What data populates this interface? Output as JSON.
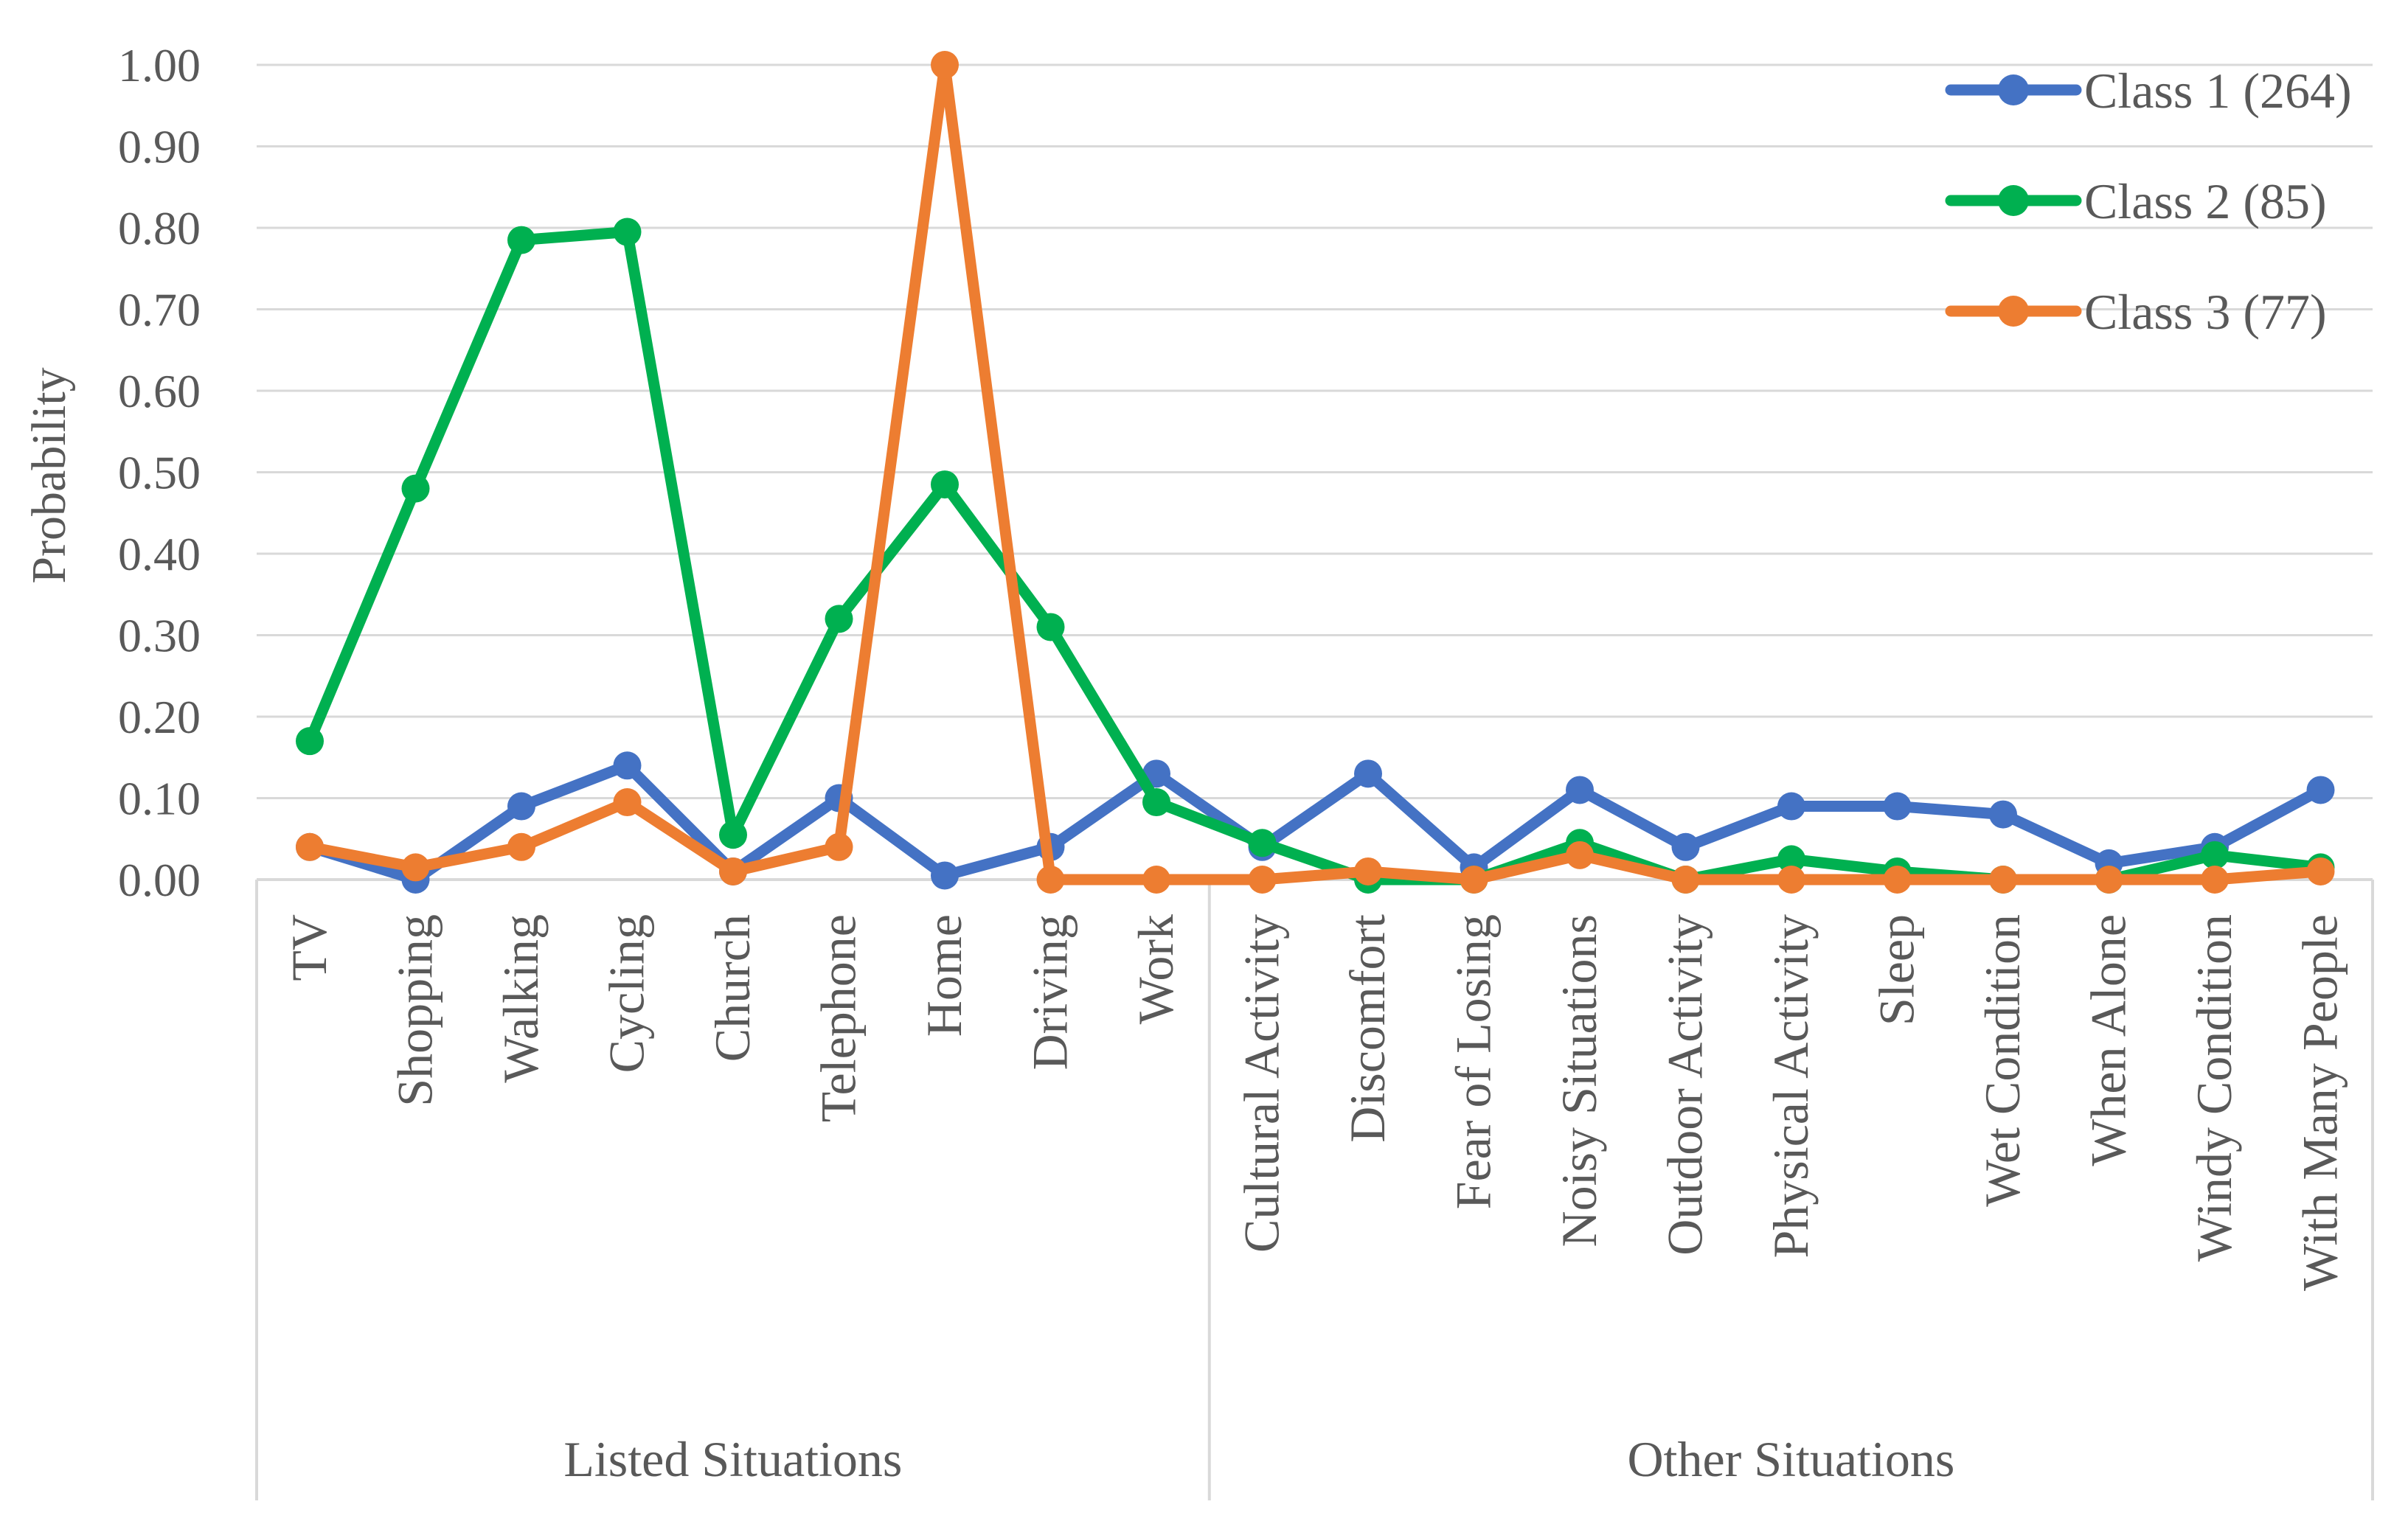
{
  "chart_data": {
    "type": "line",
    "title": "",
    "xlabel": "",
    "ylabel": "Probability",
    "ylim": [
      0,
      1
    ],
    "yticks": [
      "0.00",
      "0.10",
      "0.20",
      "0.30",
      "0.40",
      "0.50",
      "0.60",
      "0.70",
      "0.80",
      "0.90",
      "1.00"
    ],
    "grid": true,
    "legend_position": "top-right",
    "categories": [
      "TV",
      "Shopping",
      "Walking",
      "Cycling",
      "Church",
      "Telephone",
      "Home",
      "Driving",
      "Work",
      "Cultural Activity",
      "Discomfort",
      "Fear of Losing",
      "Noisy Situations",
      "Outdoor Activity",
      "Physical Activity",
      "Sleep",
      "Wet Condition",
      "When Alone",
      "Windy Condition",
      "With Many People"
    ],
    "groups": [
      {
        "label": "Listed Situations",
        "count": 9
      },
      {
        "label": "Other Situations",
        "count": 11
      }
    ],
    "series": [
      {
        "name": "Class 1 (264)",
        "color": "#4472C4",
        "values": [
          0.04,
          0.0,
          0.09,
          0.14,
          0.01,
          0.1,
          0.005,
          0.04,
          0.13,
          0.04,
          0.13,
          0.015,
          0.11,
          0.04,
          0.09,
          0.09,
          0.08,
          0.02,
          0.04,
          0.11
        ]
      },
      {
        "name": "Class 2 (85)",
        "color": "#00B050",
        "values": [
          0.17,
          0.48,
          0.785,
          0.795,
          0.055,
          0.32,
          0.485,
          0.31,
          0.095,
          0.045,
          0.0,
          0.0,
          0.045,
          0.0,
          0.025,
          0.01,
          0.0,
          0.0,
          0.03,
          0.015
        ]
      },
      {
        "name": "Class 3 (77)",
        "color": "#ED7D31",
        "values": [
          0.04,
          0.015,
          0.04,
          0.095,
          0.01,
          0.04,
          1.0,
          0.0,
          0.0,
          0.0,
          0.01,
          0.0,
          0.03,
          0.0,
          0.0,
          0.0,
          0.0,
          0.0,
          0.0,
          0.01
        ]
      }
    ]
  }
}
